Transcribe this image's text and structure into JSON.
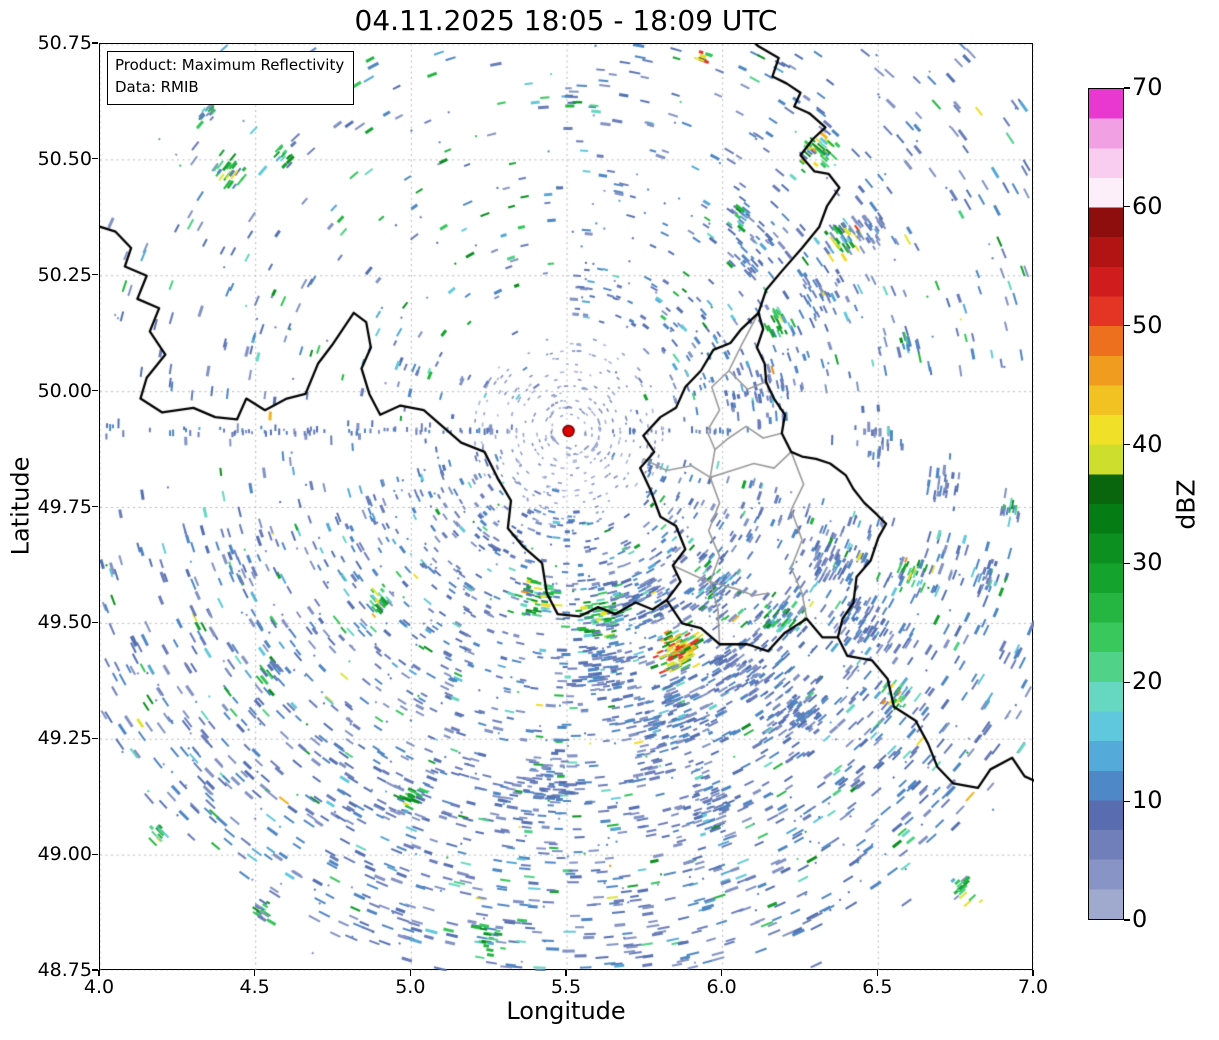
{
  "title": "04.11.2025 18:05 - 18:09 UTC",
  "info_box": {
    "line1": "Product: Maximum Reflectivity",
    "line2": "Data: RMIB"
  },
  "axes": {
    "x": {
      "label": "Longitude",
      "range": [
        4.0,
        7.0
      ],
      "ticks": [
        "4.0",
        "4.5",
        "5.0",
        "5.5",
        "6.0",
        "6.5",
        "7.0"
      ]
    },
    "y": {
      "label": "Latitude",
      "range": [
        48.75,
        50.75
      ],
      "ticks": [
        "48.75",
        "49.00",
        "49.25",
        "49.50",
        "49.75",
        "50.00",
        "50.25",
        "50.50",
        "50.75"
      ]
    }
  },
  "colorbar": {
    "label": "dBZ",
    "range": [
      0,
      70
    ],
    "ticks": [
      "0",
      "10",
      "20",
      "30",
      "40",
      "50",
      "60",
      "70"
    ],
    "colors": [
      "#a0aace",
      "#8894c6",
      "#707eba",
      "#5a6cb0",
      "#4e88c6",
      "#54aad8",
      "#60c8dc",
      "#66d8c2",
      "#50d288",
      "#38c85c",
      "#24b640",
      "#14a42e",
      "#0c9020",
      "#067c14",
      "#0a660c",
      "#cede2c",
      "#f0e028",
      "#f2c222",
      "#f09c1e",
      "#ec701e",
      "#e43424",
      "#d01c1c",
      "#b21414",
      "#8e0e0e",
      "#fdeffa",
      "#f8cdf0",
      "#f2a0e4",
      "#e838d0"
    ]
  },
  "radar_site": {
    "lon": 5.505,
    "lat": 49.915,
    "marker": "red-dot",
    "marker_color": "#e00000",
    "marker_edge": "#700000"
  },
  "map": {
    "grid_color": "#b9b9b9",
    "border_color_country": "#000000",
    "border_color_region": "#9a9a9a",
    "borders_black": [
      [
        [
          3.98,
          50.36
        ],
        [
          4.05,
          50.345
        ],
        [
          4.1,
          50.31
        ],
        [
          4.08,
          50.27
        ],
        [
          4.15,
          50.25
        ],
        [
          4.12,
          50.2
        ],
        [
          4.19,
          50.18
        ],
        [
          4.16,
          50.13
        ],
        [
          4.21,
          50.08
        ],
        [
          4.15,
          50.03
        ],
        [
          4.13,
          49.985
        ],
        [
          4.2,
          49.955
        ],
        [
          4.3,
          49.965
        ],
        [
          4.37,
          49.945
        ],
        [
          4.44,
          49.94
        ],
        [
          4.47,
          49.985
        ],
        [
          4.53,
          49.96
        ],
        [
          4.6,
          49.985
        ],
        [
          4.66,
          49.995
        ],
        [
          4.7,
          50.06
        ],
        [
          4.745,
          50.1
        ],
        [
          4.78,
          50.135
        ],
        [
          4.815,
          50.17
        ],
        [
          4.855,
          50.15
        ],
        [
          4.87,
          50.095
        ],
        [
          4.84,
          50.05
        ],
        [
          4.865,
          49.995
        ],
        [
          4.9,
          49.95
        ],
        [
          4.965,
          49.97
        ],
        [
          5.04,
          49.96
        ],
        [
          5.1,
          49.925
        ],
        [
          5.16,
          49.89
        ],
        [
          5.235,
          49.87
        ],
        [
          5.28,
          49.81
        ],
        [
          5.32,
          49.765
        ],
        [
          5.31,
          49.705
        ],
        [
          5.36,
          49.665
        ],
        [
          5.42,
          49.63
        ],
        [
          5.435,
          49.565
        ],
        [
          5.47,
          49.52
        ],
        [
          5.54,
          49.515
        ],
        [
          5.6,
          49.535
        ],
        [
          5.655,
          49.52
        ],
        [
          5.72,
          49.545
        ],
        [
          5.775,
          49.53
        ],
        [
          5.82,
          49.55
        ],
        [
          5.87,
          49.5
        ],
        [
          5.93,
          49.49
        ],
        [
          5.99,
          49.455
        ],
        [
          6.08,
          49.455
        ],
        [
          6.145,
          49.44
        ],
        [
          6.2,
          49.48
        ],
        [
          6.27,
          49.51
        ],
        [
          6.32,
          49.47
        ],
        [
          6.37,
          49.47
        ],
        [
          6.4,
          49.43
        ],
        [
          6.48,
          49.42
        ],
        [
          6.53,
          49.38
        ],
        [
          6.55,
          49.32
        ],
        [
          6.62,
          49.29
        ],
        [
          6.66,
          49.24
        ],
        [
          6.69,
          49.19
        ],
        [
          6.74,
          49.155
        ],
        [
          6.82,
          49.145
        ],
        [
          6.86,
          49.185
        ],
        [
          6.93,
          49.21
        ],
        [
          6.97,
          49.17
        ],
        [
          7.02,
          49.155
        ]
      ],
      [
        [
          5.82,
          49.55
        ],
        [
          5.865,
          49.59
        ],
        [
          5.84,
          49.625
        ],
        [
          5.88,
          49.66
        ],
        [
          5.85,
          49.71
        ],
        [
          5.8,
          49.73
        ],
        [
          5.77,
          49.785
        ],
        [
          5.735,
          49.835
        ],
        [
          5.78,
          49.87
        ],
        [
          5.745,
          49.905
        ],
        [
          5.8,
          49.945
        ],
        [
          5.85,
          49.965
        ],
        [
          5.88,
          50.01
        ],
        [
          5.93,
          50.045
        ],
        [
          5.97,
          50.09
        ],
        [
          6.025,
          50.105
        ],
        [
          6.06,
          50.135
        ],
        [
          6.115,
          50.17
        ],
        [
          6.14,
          50.22
        ],
        [
          6.19,
          50.26
        ],
        [
          6.255,
          50.31
        ],
        [
          6.31,
          50.355
        ],
        [
          6.335,
          50.4
        ],
        [
          6.375,
          50.44
        ],
        [
          6.34,
          50.47
        ],
        [
          6.295,
          50.475
        ],
        [
          6.25,
          50.51
        ],
        [
          6.29,
          50.545
        ],
        [
          6.33,
          50.57
        ],
        [
          6.28,
          50.6
        ],
        [
          6.23,
          50.615
        ],
        [
          6.25,
          50.645
        ],
        [
          6.205,
          50.665
        ],
        [
          6.16,
          50.68
        ],
        [
          6.18,
          50.72
        ],
        [
          6.115,
          50.745
        ],
        [
          6.09,
          50.76
        ]
      ],
      [
        [
          6.37,
          49.47
        ],
        [
          6.385,
          49.51
        ],
        [
          6.42,
          49.545
        ],
        [
          6.43,
          49.6
        ],
        [
          6.475,
          49.635
        ],
        [
          6.5,
          49.685
        ],
        [
          6.525,
          49.715
        ],
        [
          6.495,
          49.735
        ],
        [
          6.455,
          49.76
        ],
        [
          6.42,
          49.79
        ],
        [
          6.395,
          49.82
        ],
        [
          6.345,
          49.845
        ],
        [
          6.3,
          49.855
        ],
        [
          6.255,
          49.86
        ],
        [
          6.22,
          49.87
        ],
        [
          6.19,
          49.91
        ],
        [
          6.2,
          49.95
        ],
        [
          6.165,
          49.985
        ],
        [
          6.14,
          50.02
        ],
        [
          6.135,
          50.06
        ],
        [
          6.11,
          50.095
        ],
        [
          6.13,
          50.135
        ],
        [
          6.115,
          50.17
        ]
      ]
    ],
    "borders_gray": [
      [
        [
          5.745,
          49.855
        ],
        [
          5.82,
          49.83
        ],
        [
          5.9,
          49.84
        ],
        [
          5.96,
          49.815
        ],
        [
          6.03,
          49.83
        ],
        [
          6.1,
          49.845
        ],
        [
          6.165,
          49.835
        ],
        [
          6.22,
          49.87
        ]
      ],
      [
        [
          6.22,
          49.87
        ],
        [
          6.26,
          49.8
        ],
        [
          6.22,
          49.745
        ],
        [
          6.255,
          49.68
        ],
        [
          6.22,
          49.62
        ],
        [
          6.255,
          49.565
        ],
        [
          6.27,
          49.51
        ]
      ],
      [
        [
          5.96,
          49.815
        ],
        [
          5.99,
          49.76
        ],
        [
          5.955,
          49.7
        ],
        [
          5.99,
          49.645
        ],
        [
          5.96,
          49.59
        ],
        [
          5.985,
          49.53
        ],
        [
          5.99,
          49.455
        ]
      ],
      [
        [
          5.84,
          49.625
        ],
        [
          5.92,
          49.6
        ],
        [
          5.96,
          49.59
        ],
        [
          6.04,
          49.575
        ],
        [
          6.1,
          49.56
        ],
        [
          6.145,
          49.565
        ]
      ],
      [
        [
          6.115,
          50.17
        ],
        [
          6.06,
          50.1
        ],
        [
          6.02,
          50.045
        ],
        [
          5.965,
          50.01
        ],
        [
          5.99,
          49.96
        ],
        [
          5.95,
          49.915
        ],
        [
          5.975,
          49.875
        ],
        [
          5.96,
          49.815
        ]
      ],
      [
        [
          6.19,
          49.91
        ],
        [
          6.13,
          49.9
        ],
        [
          6.075,
          49.925
        ],
        [
          6.02,
          49.9
        ],
        [
          5.975,
          49.875
        ]
      ],
      [
        [
          6.02,
          50.045
        ],
        [
          6.08,
          50.005
        ],
        [
          6.135,
          50.02
        ]
      ]
    ]
  },
  "echoes": {
    "colors": {
      "blue": [
        "#8292c2",
        "#6a7cb8",
        "#5570b0",
        "#4d86c2"
      ],
      "cyan": [
        "#54a8d4",
        "#62c8da",
        "#66d6c0"
      ],
      "green": [
        "#4ed084",
        "#35c55a",
        "#22b43e",
        "#12a02c",
        "#0b8d1e"
      ],
      "yellow": [
        "#dfe42f",
        "#f2da28"
      ],
      "orange": [
        "#f3b11e",
        "#ee8a1c"
      ],
      "red": [
        "#e3312a"
      ],
      "faint": [
        "#aab4d6",
        "#94a2cc",
        "#8090c0"
      ]
    },
    "palettes": {
      "field": {
        "blue": 0.85,
        "cyan": 0.08,
        "green": 0.06,
        "yellow": 0.008,
        "orange": 0.002
      },
      "blue": {
        "blue": 0.97,
        "cyan": 0.03
      },
      "mix": {
        "blue": 0.55,
        "cyan": 0.15,
        "green": 0.3
      },
      "green": {
        "blue": 0.15,
        "cyan": 0.15,
        "green": 0.62,
        "yellow": 0.07,
        "orange": 0.01
      },
      "greenhot": {
        "blue": 0.1,
        "cyan": 0.1,
        "green": 0.55,
        "yellow": 0.18,
        "orange": 0.06,
        "red": 0.01
      },
      "hot": {
        "green": 0.35,
        "yellow": 0.35,
        "orange": 0.2,
        "red": 0.1
      },
      "faint": {
        "faint": 1.0
      }
    },
    "sectors": [
      {
        "az": [
          15,
          165
        ],
        "r": [
          85,
          555
        ],
        "n": 1900,
        "pow": 0.8,
        "palette": "field"
      },
      {
        "az": [
          40,
          140
        ],
        "r": [
          350,
          545
        ],
        "n": 300,
        "pow": 1,
        "palette": "field"
      },
      {
        "az": [
          -88,
          -8
        ],
        "r": [
          110,
          560
        ],
        "n": 520,
        "pow": 1,
        "palette": "field"
      },
      {
        "az": [
          192,
          268
        ],
        "r": [
          130,
          530
        ],
        "n": 150,
        "pow": 1,
        "palette": "mix"
      },
      {
        "az": [
          150,
          212
        ],
        "r": [
          70,
          500
        ],
        "n": 110,
        "pow": 1,
        "palette": "field"
      },
      {
        "az": [
          0,
          360
        ],
        "r": [
          50,
          600
        ],
        "n": 170,
        "pow": 1,
        "palette": "field"
      }
    ],
    "rings": {
      "n": 340,
      "r_start": 16,
      "r_step": 7,
      "levels": 12
    },
    "spokes": [
      {
        "az": 180,
        "n": 75,
        "r": [
          60,
          470
        ]
      },
      {
        "az": 0,
        "n": 22,
        "r": [
          40,
          180
        ]
      }
    ],
    "clusters": [
      [
        5.86,
        49.44,
        100,
        22,
        "hot"
      ],
      [
        5.6,
        49.52,
        70,
        26,
        "green"
      ],
      [
        5.4,
        49.555,
        45,
        22,
        "green"
      ],
      [
        5.97,
        49.57,
        55,
        26,
        "mix"
      ],
      [
        6.18,
        49.52,
        40,
        22,
        "mix"
      ],
      [
        6.62,
        49.6,
        30,
        20,
        "green"
      ],
      [
        6.86,
        49.6,
        22,
        16,
        "mix"
      ],
      [
        6.3,
        50.52,
        38,
        18,
        "greenhot"
      ],
      [
        6.38,
        50.33,
        32,
        16,
        "greenhot"
      ],
      [
        6.18,
        50.15,
        22,
        14,
        "green"
      ],
      [
        6.05,
        50.38,
        18,
        14,
        "mix"
      ],
      [
        4.42,
        50.47,
        24,
        18,
        "green"
      ],
      [
        4.6,
        50.51,
        16,
        12,
        "green"
      ],
      [
        4.35,
        50.6,
        14,
        12,
        "mix"
      ],
      [
        5.52,
        50.63,
        12,
        12,
        "mix"
      ],
      [
        5.95,
        50.72,
        8,
        8,
        "hot"
      ],
      [
        6.78,
        48.93,
        18,
        14,
        "green"
      ],
      [
        5.25,
        48.82,
        22,
        16,
        "green"
      ],
      [
        4.52,
        48.88,
        16,
        12,
        "green"
      ],
      [
        5.0,
        49.12,
        18,
        14,
        "green"
      ],
      [
        4.2,
        49.05,
        12,
        10,
        "green"
      ],
      [
        6.55,
        49.35,
        20,
        16,
        "green"
      ],
      [
        6.92,
        49.75,
        16,
        12,
        "mix"
      ],
      [
        6.6,
        50.1,
        14,
        12,
        "mix"
      ],
      [
        4.9,
        49.55,
        20,
        16,
        "green"
      ],
      [
        4.55,
        49.4,
        14,
        12,
        "mix"
      ],
      [
        5.85,
        49.3,
        120,
        45,
        "blue"
      ],
      [
        5.6,
        49.4,
        90,
        40,
        "blue"
      ],
      [
        6.05,
        49.4,
        90,
        40,
        "blue"
      ],
      [
        5.75,
        49.55,
        80,
        35,
        "blue"
      ],
      [
        6.25,
        49.3,
        70,
        35,
        "blue"
      ],
      [
        5.45,
        49.15,
        60,
        35,
        "blue"
      ],
      [
        5.95,
        49.1,
        50,
        30,
        "blue"
      ],
      [
        6.45,
        49.5,
        60,
        30,
        "blue"
      ],
      [
        6.35,
        49.65,
        50,
        30,
        "blue"
      ],
      [
        6.15,
        50.0,
        40,
        35,
        "blue"
      ],
      [
        6.3,
        50.2,
        40,
        30,
        "blue"
      ],
      [
        6.45,
        50.35,
        35,
        25,
        "blue"
      ],
      [
        6.1,
        50.3,
        30,
        30,
        "blue"
      ],
      [
        6.5,
        49.9,
        30,
        25,
        "blue"
      ],
      [
        6.7,
        49.8,
        25,
        25,
        "blue"
      ]
    ]
  },
  "chart_data": {
    "type": "heatmap",
    "title": "04.11.2025 18:05 - 18:09 UTC",
    "xlabel": "Longitude",
    "ylabel": "Latitude",
    "xlim": [
      4.0,
      7.0
    ],
    "ylim": [
      48.75,
      50.75
    ],
    "colorbar": {
      "label": "dBZ",
      "ticks": [
        0,
        10,
        20,
        30,
        40,
        50,
        60,
        70
      ],
      "vmin": 0,
      "vmax": 70
    },
    "product": "Maximum Reflectivity",
    "source": "RMIB",
    "radar_location": {
      "lon": 5.505,
      "lat": 49.915
    },
    "content": "Scattered weak radar echoes (mostly 0-15 dBZ, isolated 20-45 dBZ cells) arranged radially around the radar site marked by a red dot; national borders of Belgium, France, Luxembourg and Germany drawn in black, Luxembourg district borders in gray, dashed lat/lon grid."
  }
}
